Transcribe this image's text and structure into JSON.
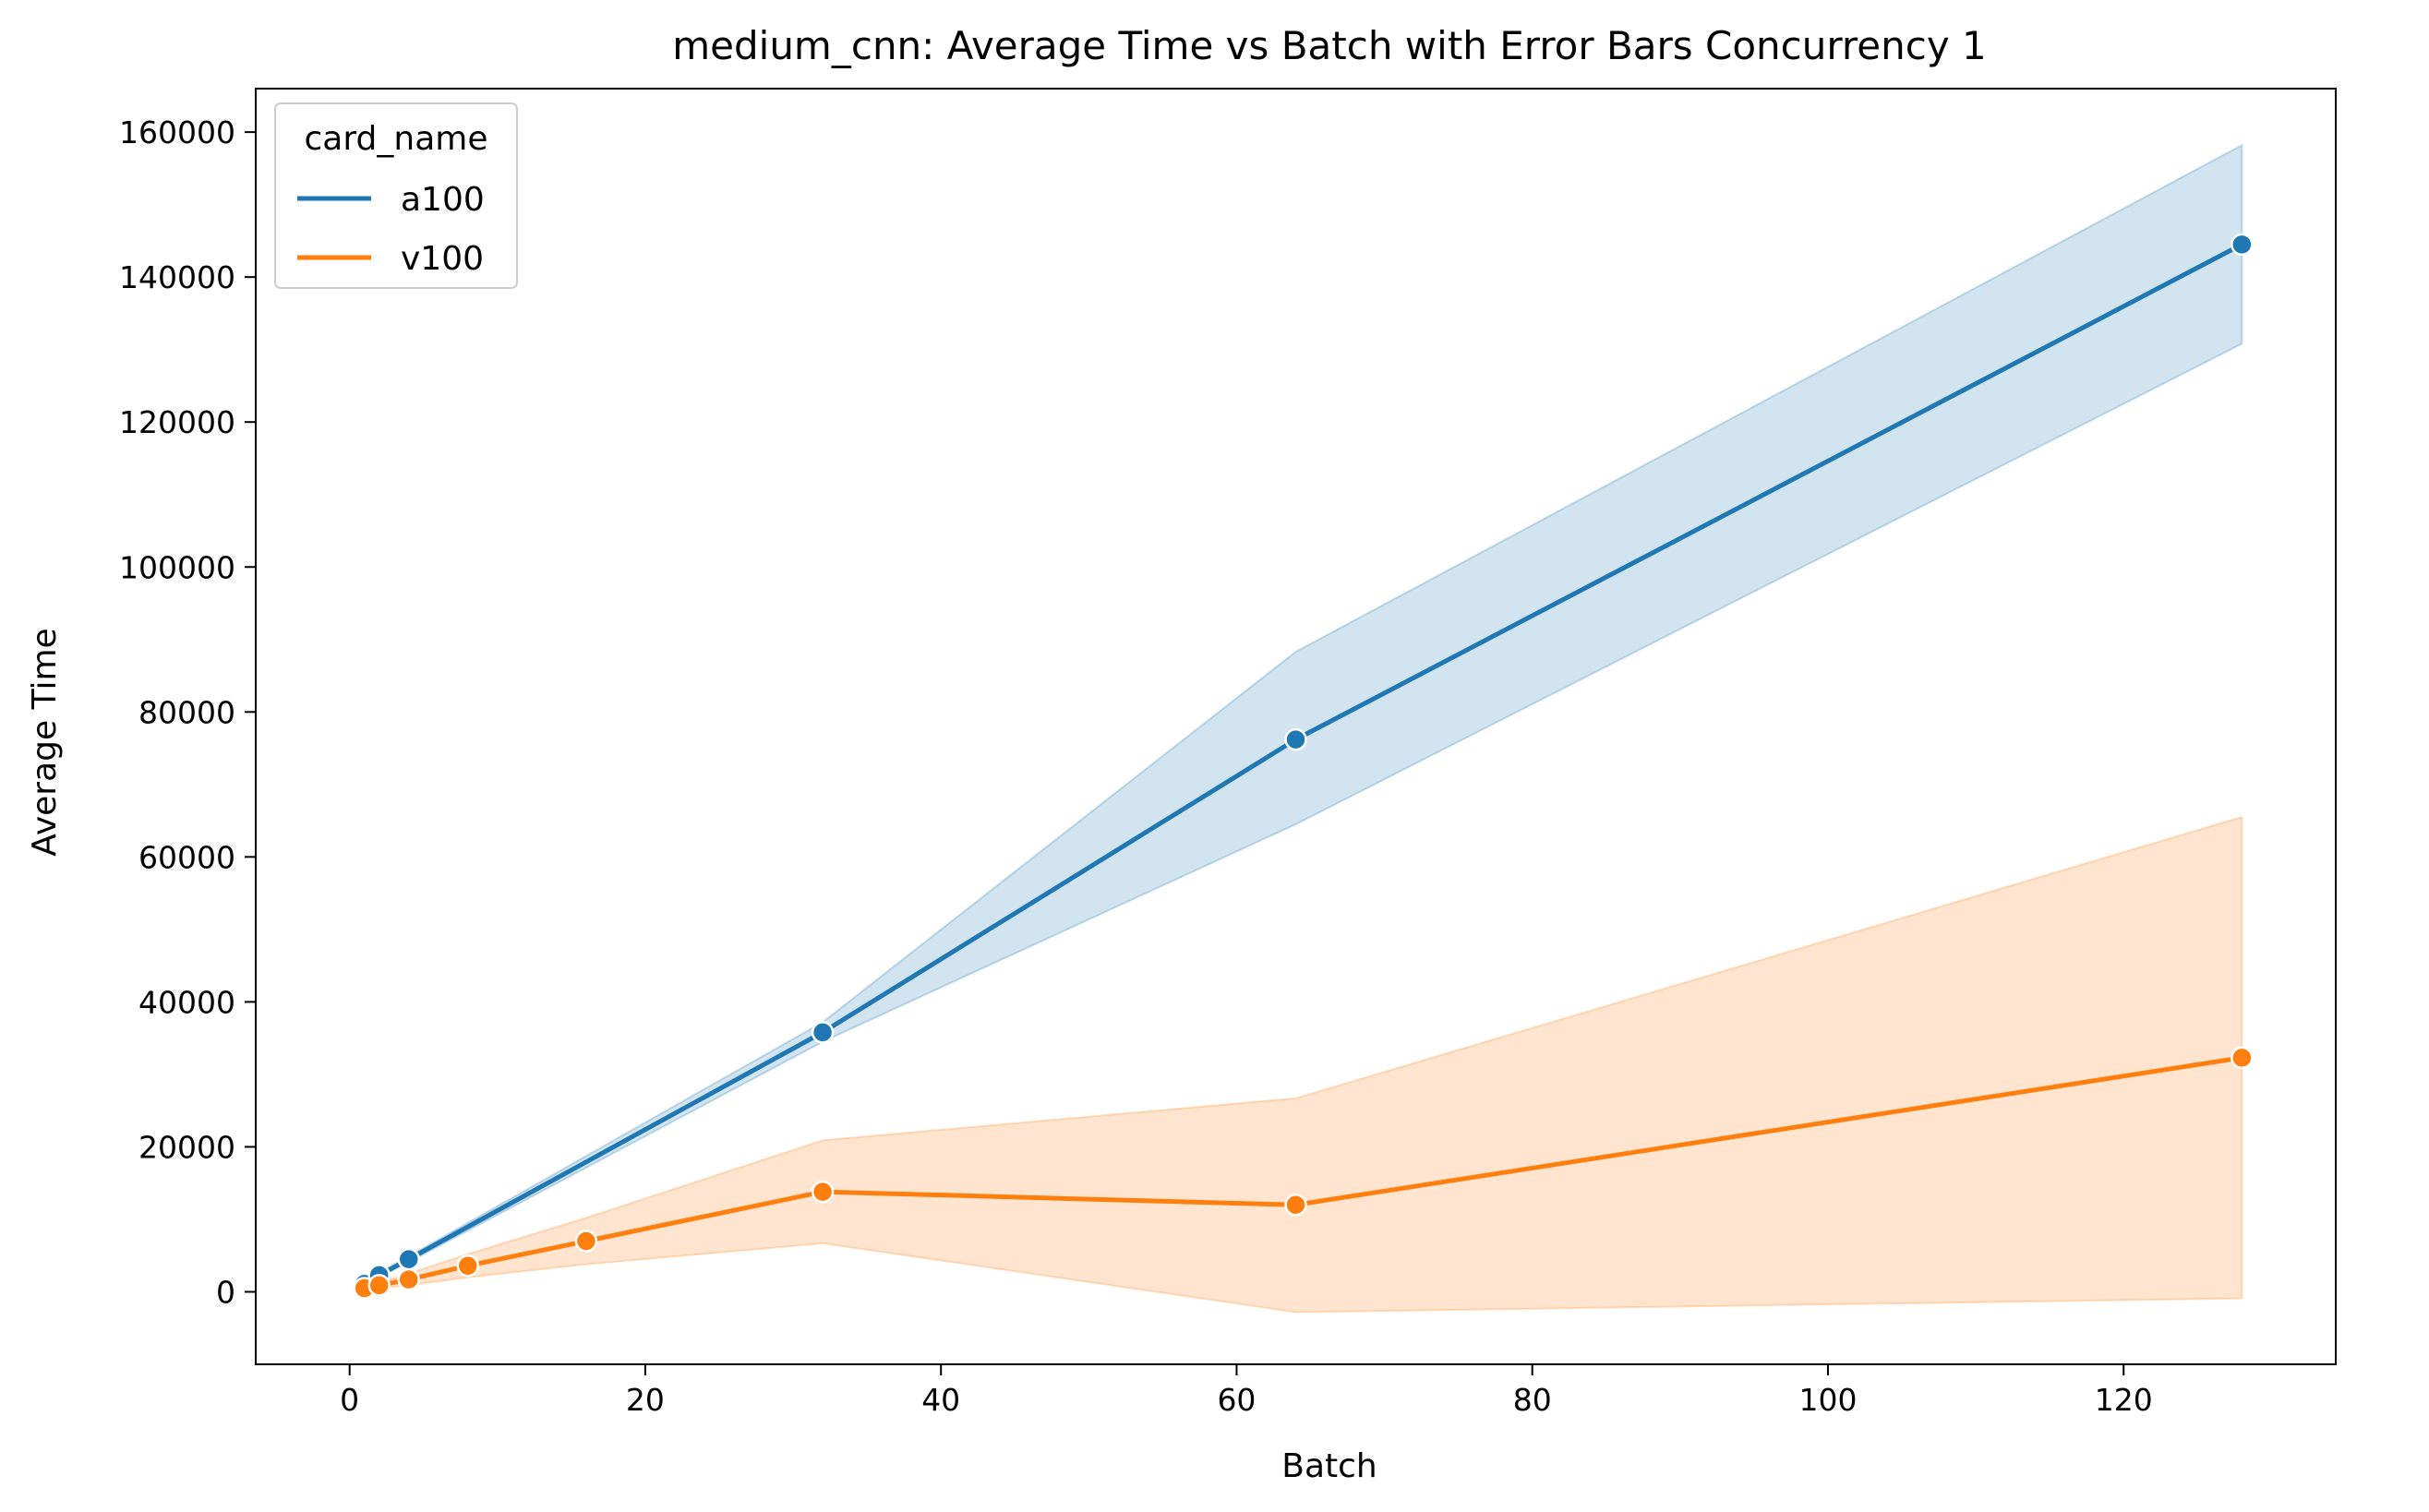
{
  "chart_data": {
    "type": "line",
    "title": "medium_cnn: Average Time vs Batch with Error Bars Concurrency 1",
    "xlabel": "Batch",
    "ylabel": "Average Time",
    "xlim": [
      -6.35,
      134.35
    ],
    "ylim": [
      -10000,
      166000
    ],
    "xticks": [
      0,
      20,
      40,
      60,
      80,
      100,
      120
    ],
    "yticks": [
      0,
      20000,
      40000,
      60000,
      80000,
      100000,
      120000,
      140000,
      160000
    ],
    "xtick_labels": [
      "0",
      "20",
      "40",
      "60",
      "80",
      "100",
      "120"
    ],
    "ytick_labels": [
      "0",
      "20000",
      "40000",
      "60000",
      "80000",
      "100000",
      "120000",
      "140000",
      "160000"
    ],
    "grid": false,
    "legend": {
      "title": "card_name",
      "placement": "top-left"
    },
    "series": [
      {
        "name": "a100",
        "color": "#1f77b4",
        "x": [
          1,
          2,
          4,
          32,
          64,
          128
        ],
        "y": [
          1100,
          2300,
          4500,
          35800,
          76200,
          144500
        ],
        "ci_lower": [
          900,
          2000,
          4100,
          34500,
          64500,
          130800
        ],
        "ci_upper": [
          1300,
          2600,
          4900,
          37200,
          88300,
          158200
        ]
      },
      {
        "name": "v100",
        "color": "#ff7f0e",
        "x": [
          1,
          2,
          4,
          8,
          16,
          32,
          64,
          128
        ],
        "y": [
          500,
          900,
          1700,
          3600,
          7000,
          13800,
          12000,
          32300
        ],
        "ci_lower": [
          300,
          500,
          900,
          2000,
          3800,
          6700,
          -2800,
          -900
        ],
        "ci_upper": [
          700,
          1300,
          2500,
          5200,
          10200,
          20900,
          26700,
          65500
        ]
      }
    ]
  }
}
